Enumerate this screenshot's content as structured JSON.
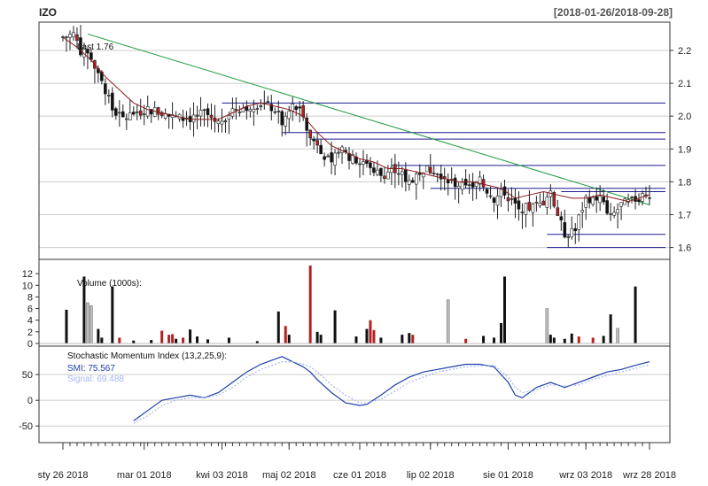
{
  "header": {
    "ticker": "IZO",
    "range": "[2018-01-26/2018-09-28]"
  },
  "chart_data": [
    {
      "type": "candlestick",
      "panel": "price",
      "annotation": "Last 1.76",
      "ylim": [
        1.58,
        2.27
      ],
      "y_ticks": [
        {
          "v": 1.6,
          "label": "1.6"
        },
        {
          "v": 1.7,
          "label": "1.7"
        },
        {
          "v": 1.8,
          "label": "1.8"
        },
        {
          "v": 1.9,
          "label": "1.9"
        },
        {
          "v": 2.0,
          "label": "2.0"
        },
        {
          "v": 2.1,
          "label": "2.1"
        },
        {
          "v": 2.2,
          "label": "2.2"
        }
      ],
      "x_ticks": [
        {
          "i": 0,
          "label": "sty 26 2018"
        },
        {
          "i": 23,
          "label": "mar 01 2018"
        },
        {
          "i": 45,
          "label": "kwi 03 2018"
        },
        {
          "i": 64,
          "label": "maj 02 2018"
        },
        {
          "i": 84,
          "label": "cze 01 2018"
        },
        {
          "i": 104,
          "label": "lip 02 2018"
        },
        {
          "i": 126,
          "label": "sie 01 2018"
        },
        {
          "i": 148,
          "label": "wrz 03 2018"
        },
        {
          "i": 166,
          "label": "wrz 28 2018"
        }
      ],
      "n": 167,
      "ohlc_keys": [
        [
          0,
          2.24
        ],
        [
          3,
          2.25
        ],
        [
          5,
          2.2
        ],
        [
          8,
          2.18
        ],
        [
          10,
          2.12
        ],
        [
          12,
          2.08
        ],
        [
          14,
          2.02
        ],
        [
          17,
          1.99
        ],
        [
          20,
          2.01
        ],
        [
          25,
          2.02
        ],
        [
          30,
          2.0
        ],
        [
          35,
          1.99
        ],
        [
          40,
          2.01
        ],
        [
          44,
          1.98
        ],
        [
          48,
          2.02
        ],
        [
          52,
          2.03
        ],
        [
          56,
          2.04
        ],
        [
          60,
          2.02
        ],
        [
          62,
          1.98
        ],
        [
          65,
          2.03
        ],
        [
          68,
          2.01
        ],
        [
          70,
          1.93
        ],
        [
          72,
          1.92
        ],
        [
          74,
          1.88
        ],
        [
          76,
          1.85
        ],
        [
          78,
          1.9
        ],
        [
          82,
          1.87
        ],
        [
          86,
          1.86
        ],
        [
          88,
          1.84
        ],
        [
          90,
          1.82
        ],
        [
          94,
          1.84
        ],
        [
          98,
          1.8
        ],
        [
          102,
          1.84
        ],
        [
          106,
          1.83
        ],
        [
          110,
          1.8
        ],
        [
          114,
          1.78
        ],
        [
          118,
          1.8
        ],
        [
          122,
          1.75
        ],
        [
          125,
          1.77
        ],
        [
          127,
          1.74
        ],
        [
          129,
          1.72
        ],
        [
          132,
          1.72
        ],
        [
          135,
          1.73
        ],
        [
          138,
          1.76
        ],
        [
          140,
          1.7
        ],
        [
          142,
          1.64
        ],
        [
          145,
          1.66
        ],
        [
          148,
          1.75
        ],
        [
          152,
          1.75
        ],
        [
          155,
          1.69
        ],
        [
          158,
          1.73
        ],
        [
          161,
          1.74
        ],
        [
          164,
          1.76
        ],
        [
          166,
          1.76
        ]
      ],
      "ma_keys": [
        [
          0,
          2.24
        ],
        [
          4,
          2.21
        ],
        [
          8,
          2.17
        ],
        [
          12,
          2.12
        ],
        [
          16,
          2.08
        ],
        [
          20,
          2.04
        ],
        [
          24,
          2.02
        ],
        [
          28,
          2.01
        ],
        [
          32,
          2.0
        ],
        [
          36,
          1.99
        ],
        [
          40,
          1.99
        ],
        [
          44,
          1.99
        ],
        [
          48,
          2.01
        ],
        [
          52,
          2.03
        ],
        [
          56,
          2.04
        ],
        [
          60,
          2.03
        ],
        [
          64,
          2.02
        ],
        [
          68,
          2.0
        ],
        [
          72,
          1.95
        ],
        [
          76,
          1.91
        ],
        [
          80,
          1.89
        ],
        [
          84,
          1.87
        ],
        [
          88,
          1.86
        ],
        [
          92,
          1.84
        ],
        [
          96,
          1.84
        ],
        [
          100,
          1.83
        ],
        [
          104,
          1.82
        ],
        [
          108,
          1.81
        ],
        [
          112,
          1.8
        ],
        [
          116,
          1.8
        ],
        [
          120,
          1.79
        ],
        [
          124,
          1.78
        ],
        [
          128,
          1.75
        ],
        [
          132,
          1.76
        ],
        [
          136,
          1.77
        ],
        [
          140,
          1.76
        ],
        [
          144,
          1.75
        ],
        [
          148,
          1.75
        ],
        [
          152,
          1.76
        ],
        [
          156,
          1.75
        ],
        [
          160,
          1.74
        ],
        [
          163,
          1.75
        ],
        [
          166,
          1.76
        ]
      ],
      "trendline": [
        [
          7,
          2.25
        ],
        [
          166,
          1.73
        ]
      ],
      "levels": [
        {
          "v": 2.04,
          "from": 45,
          "to": 166
        },
        {
          "v": 1.95,
          "from": 62,
          "to": 166
        },
        {
          "v": 1.93,
          "from": 70,
          "to": 166
        },
        {
          "v": 1.85,
          "from": 93,
          "to": 166
        },
        {
          "v": 1.78,
          "from": 104,
          "to": 166
        },
        {
          "v": 1.77,
          "from": 141,
          "to": 166
        },
        {
          "v": 1.64,
          "from": 137,
          "to": 166
        },
        {
          "v": 1.6,
          "from": 137,
          "to": 166
        }
      ]
    },
    {
      "type": "bar",
      "panel": "volume",
      "annotation": "Volume (1000s):",
      "ylim": [
        0,
        14
      ],
      "y_ticks": [
        {
          "v": 0,
          "label": "0"
        },
        {
          "v": 2,
          "label": "2"
        },
        {
          "v": 4,
          "label": "4"
        },
        {
          "v": 6,
          "label": "6"
        },
        {
          "v": 8,
          "label": "8"
        },
        {
          "v": 10,
          "label": "10"
        },
        {
          "v": 12,
          "label": "12"
        }
      ],
      "bars": [
        {
          "i": 1,
          "v": 5.8,
          "c": "up"
        },
        {
          "i": 6,
          "v": 11.5,
          "c": "up"
        },
        {
          "i": 7,
          "v": 7.0,
          "c": "flat"
        },
        {
          "i": 8,
          "v": 6.5,
          "c": "flat"
        },
        {
          "i": 10,
          "v": 2.5,
          "c": "up"
        },
        {
          "i": 11,
          "v": 1.0,
          "c": "up"
        },
        {
          "i": 14,
          "v": 9.8,
          "c": "up"
        },
        {
          "i": 16,
          "v": 1.0,
          "c": "down"
        },
        {
          "i": 20,
          "v": 0.5,
          "c": "up"
        },
        {
          "i": 25,
          "v": 0.6,
          "c": "up"
        },
        {
          "i": 28,
          "v": 2.2,
          "c": "down"
        },
        {
          "i": 30,
          "v": 1.5,
          "c": "down"
        },
        {
          "i": 31,
          "v": 1.6,
          "c": "down"
        },
        {
          "i": 32,
          "v": 0.8,
          "c": "up"
        },
        {
          "i": 34,
          "v": 1.0,
          "c": "down"
        },
        {
          "i": 36,
          "v": 2.4,
          "c": "up"
        },
        {
          "i": 38,
          "v": 1.2,
          "c": "up"
        },
        {
          "i": 41,
          "v": 0.7,
          "c": "up"
        },
        {
          "i": 47,
          "v": 1.0,
          "c": "up"
        },
        {
          "i": 55,
          "v": 0.4,
          "c": "up"
        },
        {
          "i": 61,
          "v": 5.5,
          "c": "up"
        },
        {
          "i": 63,
          "v": 3.0,
          "c": "down"
        },
        {
          "i": 64,
          "v": 1.5,
          "c": "up"
        },
        {
          "i": 70,
          "v": 13.4,
          "c": "down"
        },
        {
          "i": 72,
          "v": 2.0,
          "c": "up"
        },
        {
          "i": 73,
          "v": 1.5,
          "c": "up"
        },
        {
          "i": 77,
          "v": 5.7,
          "c": "up"
        },
        {
          "i": 83,
          "v": 1.2,
          "c": "up"
        },
        {
          "i": 86,
          "v": 2.5,
          "c": "up"
        },
        {
          "i": 87,
          "v": 4.0,
          "c": "down"
        },
        {
          "i": 88,
          "v": 2.3,
          "c": "down"
        },
        {
          "i": 90,
          "v": 1.0,
          "c": "up"
        },
        {
          "i": 96,
          "v": 1.5,
          "c": "up"
        },
        {
          "i": 98,
          "v": 1.8,
          "c": "up"
        },
        {
          "i": 99,
          "v": 1.5,
          "c": "down"
        },
        {
          "i": 109,
          "v": 7.5,
          "c": "flat"
        },
        {
          "i": 114,
          "v": 0.8,
          "c": "down"
        },
        {
          "i": 119,
          "v": 1.3,
          "c": "up"
        },
        {
          "i": 122,
          "v": 1.0,
          "c": "up"
        },
        {
          "i": 124,
          "v": 3.5,
          "c": "up"
        },
        {
          "i": 125,
          "v": 11.5,
          "c": "up"
        },
        {
          "i": 137,
          "v": 6.0,
          "c": "flat"
        },
        {
          "i": 138,
          "v": 1.5,
          "c": "up"
        },
        {
          "i": 139,
          "v": 1.0,
          "c": "up"
        },
        {
          "i": 142,
          "v": 0.8,
          "c": "up"
        },
        {
          "i": 144,
          "v": 1.7,
          "c": "up"
        },
        {
          "i": 146,
          "v": 1.2,
          "c": "down"
        },
        {
          "i": 150,
          "v": 1.0,
          "c": "down"
        },
        {
          "i": 153,
          "v": 1.3,
          "c": "up"
        },
        {
          "i": 155,
          "v": 5.0,
          "c": "up"
        },
        {
          "i": 157,
          "v": 2.6,
          "c": "flat"
        },
        {
          "i": 162,
          "v": 9.8,
          "c": "up"
        }
      ]
    },
    {
      "type": "line",
      "panel": "oscillator",
      "annotation": "Stochastic Momentum Index (13,2,25,9):",
      "ylim": [
        -72,
        95
      ],
      "y_ticks": [
        {
          "v": -50,
          "label": "-50"
        },
        {
          "v": 0,
          "label": "0"
        },
        {
          "v": 50,
          "label": "50"
        }
      ],
      "series": [
        {
          "name": "SMI",
          "legend": "SMI: 75.567",
          "color": "#1f3fa8",
          "keys": [
            [
              20,
              -40
            ],
            [
              24,
              -20
            ],
            [
              28,
              0
            ],
            [
              32,
              5
            ],
            [
              36,
              10
            ],
            [
              40,
              5
            ],
            [
              44,
              15
            ],
            [
              48,
              35
            ],
            [
              52,
              55
            ],
            [
              56,
              70
            ],
            [
              60,
              80
            ],
            [
              62,
              85
            ],
            [
              65,
              75
            ],
            [
              68,
              65
            ],
            [
              70,
              55
            ],
            [
              72,
              40
            ],
            [
              76,
              15
            ],
            [
              80,
              -5
            ],
            [
              84,
              -10
            ],
            [
              86,
              -8
            ],
            [
              90,
              10
            ],
            [
              94,
              30
            ],
            [
              98,
              45
            ],
            [
              102,
              55
            ],
            [
              106,
              60
            ],
            [
              110,
              65
            ],
            [
              114,
              70
            ],
            [
              118,
              70
            ],
            [
              122,
              65
            ],
            [
              126,
              35
            ],
            [
              128,
              10
            ],
            [
              130,
              5
            ],
            [
              134,
              25
            ],
            [
              138,
              35
            ],
            [
              142,
              25
            ],
            [
              146,
              35
            ],
            [
              150,
              45
            ],
            [
              154,
              55
            ],
            [
              158,
              60
            ],
            [
              162,
              68
            ],
            [
              166,
              75
            ]
          ]
        },
        {
          "name": "Signal",
          "legend": "Signal: 69.488",
          "color": "#a7b8f0",
          "keys": [
            [
              20,
              -45
            ],
            [
              24,
              -30
            ],
            [
              28,
              -10
            ],
            [
              32,
              0
            ],
            [
              36,
              5
            ],
            [
              40,
              5
            ],
            [
              44,
              10
            ],
            [
              48,
              25
            ],
            [
              52,
              45
            ],
            [
              56,
              60
            ],
            [
              60,
              70
            ],
            [
              62,
              75
            ],
            [
              65,
              75
            ],
            [
              68,
              70
            ],
            [
              70,
              65
            ],
            [
              72,
              55
            ],
            [
              76,
              30
            ],
            [
              80,
              10
            ],
            [
              84,
              -5
            ],
            [
              86,
              -5
            ],
            [
              90,
              2
            ],
            [
              94,
              18
            ],
            [
              98,
              35
            ],
            [
              102,
              45
            ],
            [
              106,
              55
            ],
            [
              110,
              60
            ],
            [
              114,
              65
            ],
            [
              118,
              67
            ],
            [
              122,
              68
            ],
            [
              126,
              45
            ],
            [
              128,
              25
            ],
            [
              130,
              15
            ],
            [
              134,
              20
            ],
            [
              138,
              30
            ],
            [
              142,
              28
            ],
            [
              146,
              30
            ],
            [
              150,
              40
            ],
            [
              154,
              48
            ],
            [
              158,
              55
            ],
            [
              162,
              62
            ],
            [
              166,
              69
            ]
          ]
        }
      ]
    }
  ]
}
